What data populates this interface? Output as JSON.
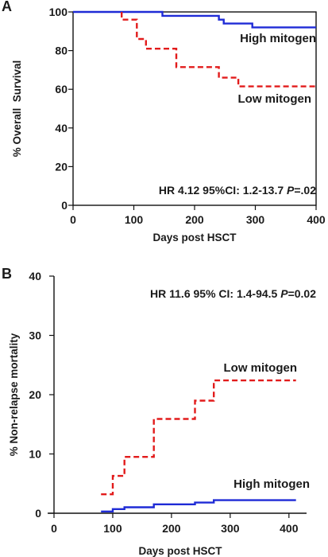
{
  "panels": [
    {
      "letter": "A",
      "annotation": {
        "pre": "HR 4.12 95%CI: 1.2-13.7 ",
        "p": "P",
        "post": "=.02"
      }
    },
    {
      "letter": "B",
      "annotation": {
        "pre": "HR 11.6 95% CI: 1.4-94.5 ",
        "p": "P",
        "post": "=0.02"
      }
    }
  ],
  "chart_data": [
    {
      "type": "line",
      "step": true,
      "xlabel": "Days post HSCT",
      "ylabel": "% Overall  Survival",
      "xlim": [
        0,
        400
      ],
      "ylim": [
        0,
        100
      ],
      "xticks": [
        0,
        100,
        200,
        300,
        400
      ],
      "yticks": [
        0,
        20,
        40,
        60,
        80,
        100
      ],
      "grid": false,
      "series": [
        {
          "name": "High mitogen",
          "color": "#1f2bd6",
          "dash": "solid",
          "x": [
            0,
            147,
            147,
            240,
            240,
            248,
            248,
            295,
            295,
            400
          ],
          "y": [
            100,
            100,
            98,
            98,
            96,
            96,
            94,
            94,
            92,
            92
          ]
        },
        {
          "name": "Low mitogen",
          "color": "#e21b1b",
          "dash": "dashed",
          "x": [
            80,
            80,
            105,
            105,
            120,
            120,
            170,
            170,
            240,
            240,
            272,
            272,
            400
          ],
          "y": [
            100,
            96,
            96,
            86,
            86,
            81,
            81,
            71.5,
            71.5,
            66,
            66,
            61.5,
            61.5
          ]
        }
      ]
    },
    {
      "type": "line",
      "step": true,
      "xlabel": "Days post HSCT",
      "ylabel": "% Non-relapse mortality",
      "xlim": [
        0,
        430
      ],
      "ylim": [
        0,
        40
      ],
      "xticks": [
        0,
        100,
        200,
        300,
        400
      ],
      "yticks": [
        0,
        10,
        20,
        30,
        40
      ],
      "grid": false,
      "series": [
        {
          "name": "High mitogen",
          "color": "#1f2bd6",
          "dash": "solid",
          "x": [
            80,
            100,
            100,
            120,
            120,
            170,
            170,
            240,
            240,
            272,
            272,
            412
          ],
          "y": [
            0.3,
            0.3,
            0.7,
            0.7,
            1.0,
            1.0,
            1.5,
            1.5,
            1.8,
            1.8,
            2.2,
            2.2
          ]
        },
        {
          "name": "Low mitogen",
          "color": "#e21b1b",
          "dash": "dashed",
          "x": [
            80,
            100,
            100,
            105,
            105,
            120,
            120,
            170,
            170,
            240,
            240,
            272,
            272,
            412
          ],
          "y": [
            3.2,
            3.2,
            6.3,
            6.3,
            6.3,
            6.3,
            9.5,
            9.5,
            15.9,
            15.9,
            19.0,
            19.0,
            22.4,
            22.4
          ]
        }
      ]
    }
  ]
}
